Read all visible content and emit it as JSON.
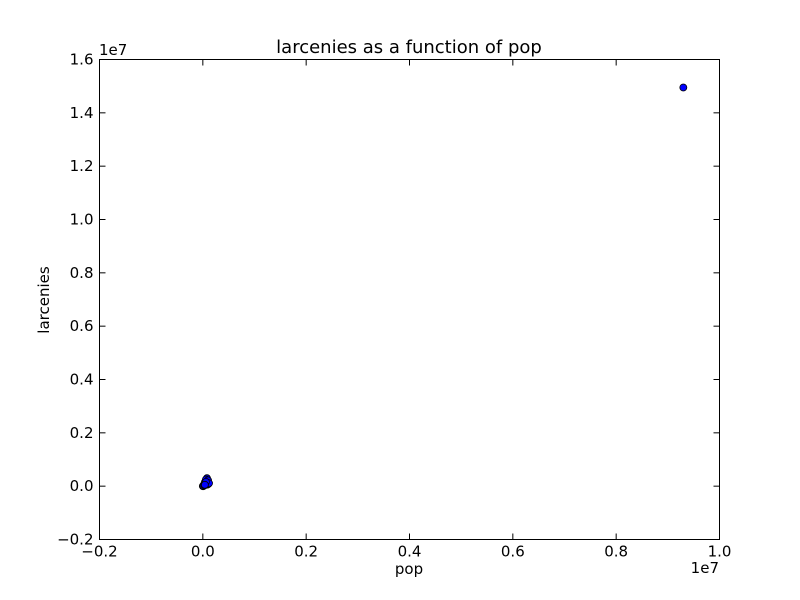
{
  "chart_data": {
    "type": "scatter",
    "title": "larcenies as a function of pop",
    "xlabel": "pop",
    "ylabel": "larcenies",
    "x_multiplier_label": "1e7",
    "y_multiplier_label": "1e7",
    "xlim": [
      -0.2,
      1.0
    ],
    "ylim": [
      -0.2,
      1.6
    ],
    "x_ticks": [
      -0.2,
      0.0,
      0.2,
      0.4,
      0.6,
      0.8,
      1.0
    ],
    "y_ticks": [
      -0.2,
      0.0,
      0.2,
      0.4,
      0.6,
      0.8,
      1.0,
      1.2,
      1.4,
      1.6
    ],
    "x_tick_labels": [
      "−0.2",
      "0.0",
      "0.2",
      "0.4",
      "0.6",
      "0.8",
      "1.0"
    ],
    "y_tick_labels": [
      "−0.2",
      "0.0",
      "0.2",
      "0.4",
      "0.6",
      "0.8",
      "1.0",
      "1.2",
      "1.4",
      "1.6"
    ],
    "grid": false,
    "marker_color": "#0000ff",
    "marker_edge_color": "#000000",
    "series": [
      {
        "x": [
          0.93,
          0.008,
          0.006,
          0.01,
          0.004,
          0.002,
          0.001,
          0.003,
          0.005,
          0.007,
          0.009,
          0.011,
          0.004,
          0.006,
          0.002,
          0.0,
          0.001,
          0.003,
          0.008,
          0.005,
          0.01,
          0.012,
          0.006,
          0.004
        ],
        "y": [
          1.495,
          0.03,
          0.02,
          0.01,
          0.015,
          0.005,
          0.0,
          0.008,
          0.012,
          0.018,
          0.006,
          0.009,
          0.004,
          0.025,
          0.002,
          0.0,
          0.001,
          0.003,
          0.014,
          0.007,
          0.022,
          0.011,
          0.016,
          0.005
        ]
      }
    ]
  }
}
